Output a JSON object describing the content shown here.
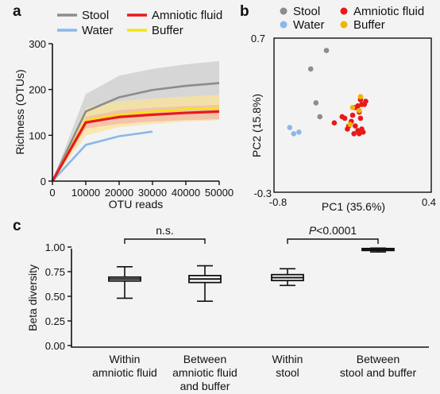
{
  "chart_data": [
    {
      "panel_label": "a",
      "type": "line",
      "xlabel": "OTU reads",
      "ylabel": "Richness (OTUs)",
      "xlim": [
        0,
        50000
      ],
      "ylim": [
        0,
        300
      ],
      "xticks": [
        "0",
        "10000",
        "20000",
        "30000",
        "40000",
        "50000"
      ],
      "yticks": [
        "0",
        "100",
        "200",
        "300"
      ],
      "legend": "top, two columns",
      "series": [
        {
          "name": "Stool",
          "color": "#8c8c8c",
          "band_color": "#d6d6d6",
          "x": [
            0,
            10000,
            20000,
            30000,
            40000,
            50000
          ],
          "y": [
            0,
            152,
            183,
            199,
            208,
            214
          ],
          "lower": [
            0,
            120,
            145,
            158,
            165,
            168
          ],
          "upper": [
            0,
            190,
            230,
            245,
            255,
            262
          ]
        },
        {
          "name": "Water",
          "color": "#8ab8ea",
          "x": [
            0,
            10000,
            20000,
            30000
          ],
          "y": [
            0,
            79,
            98,
            108
          ]
        },
        {
          "name": "Amniotic fluid",
          "color": "#e8191b",
          "band_color": "#f2b8a8",
          "x": [
            0,
            10000,
            20000,
            30000,
            40000,
            50000
          ],
          "y": [
            0,
            128,
            140,
            145,
            149,
            152
          ],
          "lower": [
            0,
            115,
            125,
            130,
            133,
            135
          ],
          "upper": [
            0,
            140,
            155,
            160,
            164,
            167
          ]
        },
        {
          "name": "Buffer",
          "color": "#f1e41a",
          "band_color": "#fbe39a",
          "x": [
            0,
            10000,
            20000,
            30000,
            40000,
            50000
          ],
          "y": [
            0,
            133,
            145,
            152,
            157,
            160
          ],
          "lower": [
            0,
            100,
            118,
            125,
            130,
            133
          ],
          "upper": [
            0,
            160,
            175,
            180,
            185,
            188
          ]
        }
      ]
    },
    {
      "panel_label": "b",
      "type": "scatter",
      "xlabel": "PC1 (35.6%)",
      "ylabel": "PC2 (15.8%)",
      "xlim": [
        -0.8,
        0.4
      ],
      "ylim": [
        -0.3,
        0.7
      ],
      "xticks": [
        "-0.8",
        "0.4"
      ],
      "yticks": [
        "-0.3",
        "0.7"
      ],
      "legend": "top, two columns",
      "series": [
        {
          "name": "Stool",
          "color": "#8c8c8c",
          "points": [
            [
              -0.4,
              0.62
            ],
            [
              -0.52,
              0.5
            ],
            [
              -0.48,
              0.28
            ],
            [
              -0.45,
              0.19
            ]
          ]
        },
        {
          "name": "Water",
          "color": "#8ab8ea",
          "points": [
            [
              -0.68,
              0.12
            ],
            [
              -0.65,
              0.08
            ],
            [
              -0.61,
              0.09
            ]
          ]
        },
        {
          "name": "Amniotic fluid",
          "color": "#e8191b",
          "points": [
            [
              -0.14,
              0.3
            ],
            [
              -0.11,
              0.27
            ],
            [
              -0.1,
              0.29
            ],
            [
              -0.13,
              0.27
            ],
            [
              -0.16,
              0.26
            ],
            [
              -0.18,
              0.25
            ],
            [
              -0.15,
              0.22
            ],
            [
              -0.2,
              0.2
            ],
            [
              -0.28,
              0.19
            ],
            [
              -0.26,
              0.18
            ],
            [
              -0.21,
              0.16
            ],
            [
              -0.23,
              0.13
            ],
            [
              -0.18,
              0.13
            ],
            [
              -0.16,
              0.1
            ],
            [
              -0.13,
              0.11
            ],
            [
              -0.19,
              0.08
            ],
            [
              -0.15,
              0.08
            ],
            [
              -0.12,
              0.09
            ],
            [
              -0.34,
              0.15
            ],
            [
              -0.24,
              0.11
            ],
            [
              -0.14,
              0.18
            ]
          ]
        },
        {
          "name": "Buffer",
          "color": "#f2b400",
          "points": [
            [
              -0.14,
              0.32
            ],
            [
              -0.2,
              0.25
            ],
            [
              -0.15,
              0.23
            ],
            [
              -0.22,
              0.14
            ]
          ]
        }
      ]
    },
    {
      "panel_label": "c",
      "type": "box",
      "ylabel": "Beta diversity",
      "ylim": [
        0,
        1
      ],
      "yticks": [
        "0.00",
        "0.25",
        "0.50",
        "0.75",
        "1.00"
      ],
      "categories": [
        [
          "Within",
          "amniotic fluid"
        ],
        [
          "Between",
          "amniotic fluid",
          "and buffer"
        ],
        [
          "Within",
          "stool"
        ],
        [
          "Between",
          "stool and buffer"
        ]
      ],
      "boxes": [
        {
          "min": 0.48,
          "q1": 0.655,
          "median": 0.675,
          "q3": 0.695,
          "max": 0.8
        },
        {
          "min": 0.45,
          "q1": 0.64,
          "median": 0.675,
          "q3": 0.71,
          "max": 0.81
        },
        {
          "min": 0.61,
          "q1": 0.66,
          "median": 0.69,
          "q3": 0.72,
          "max": 0.78
        },
        {
          "min": 0.95,
          "q1": 0.965,
          "median": 0.975,
          "q3": 0.985,
          "max": 0.99
        }
      ],
      "annotations": [
        {
          "between": [
            0,
            1
          ],
          "text": "n.s.",
          "italic_prefix": ""
        },
        {
          "between": [
            2,
            3
          ],
          "text": "<0.0001",
          "italic_prefix": "P"
        }
      ]
    }
  ]
}
